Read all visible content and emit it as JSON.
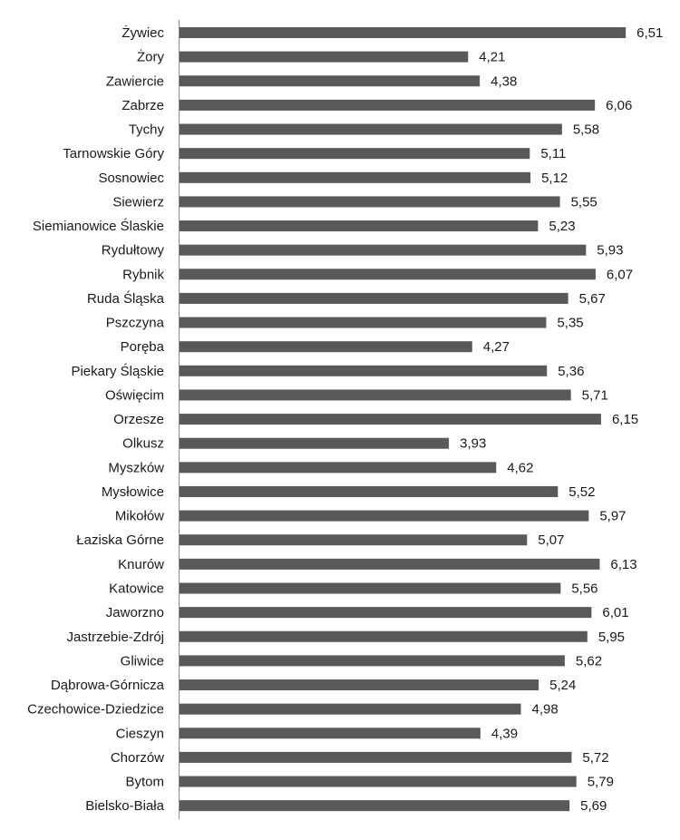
{
  "chart_data": {
    "type": "bar",
    "orientation": "horizontal",
    "title": "",
    "xlabel": "",
    "ylabel": "",
    "xlim": [
      0,
      6.8
    ],
    "grid": false,
    "legend": "none",
    "bar_color": "#595959",
    "categories": [
      "Żywiec",
      "Żory",
      "Zawiercie",
      "Zabrze",
      "Tychy",
      "Tarnowskie Góry",
      "Sosnowiec",
      "Siewierz",
      "Siemianowice Ślaskie",
      "Rydułtowy",
      "Rybnik",
      "Ruda Śląska",
      "Pszczyna",
      "Poręba",
      "Piekary Śląskie",
      "Oświęcim",
      "Orzesze",
      "Olkusz",
      "Myszków",
      "Mysłowice",
      "Mikołów",
      "Łaziska Górne",
      "Knurów",
      "Katowice",
      "Jaworzno",
      "Jastrzebie-Zdrój",
      "Gliwice",
      "Dąbrowa-Górnicza",
      "Czechowice-Dziedzice",
      "Cieszyn",
      "Chorzów",
      "Bytom",
      "Bielsko-Biała"
    ],
    "values": [
      6.51,
      4.21,
      4.38,
      6.06,
      5.58,
      5.11,
      5.12,
      5.55,
      5.23,
      5.93,
      6.07,
      5.67,
      5.35,
      4.27,
      5.36,
      5.71,
      6.15,
      3.93,
      4.62,
      5.52,
      5.97,
      5.07,
      6.13,
      5.56,
      6.01,
      5.95,
      5.62,
      5.24,
      4.98,
      4.39,
      5.72,
      5.79,
      5.69
    ],
    "value_labels": [
      "6,51",
      "4,21",
      "4,38",
      "6,06",
      "5,58",
      "5,11",
      "5,12",
      "5,55",
      "5,23",
      "5,93",
      "6,07",
      "5,67",
      "5,35",
      "4,27",
      "5,36",
      "5,71",
      "6,15",
      "3,93",
      "4,62",
      "5,52",
      "5,97",
      "5,07",
      "6,13",
      "5,56",
      "6,01",
      "5,95",
      "5,62",
      "5,24",
      "4,98",
      "4,39",
      "5,72",
      "5,79",
      "5,69"
    ]
  }
}
